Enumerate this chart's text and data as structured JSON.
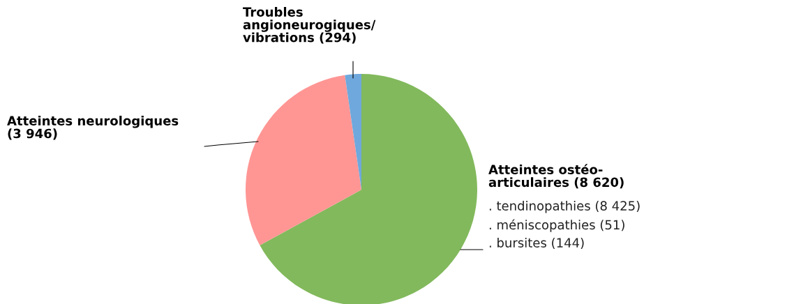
{
  "chart_data": {
    "type": "pie",
    "categories": [
      "Atteintes ostéo-\narticulaires (8 620)",
      "Atteintes neurologiques\n(3 946)",
      "Troubles\nangioneurogiques/\nvibrations (294)"
    ],
    "values": [
      8620,
      3946,
      294
    ],
    "colors": [
      "#82b95c",
      "#ff9694",
      "#6fa8dc"
    ],
    "annotations": [
      ". tendinopathies (8 425)",
      ". méniscopathies (51)",
      ". bursites (144)"
    ]
  }
}
